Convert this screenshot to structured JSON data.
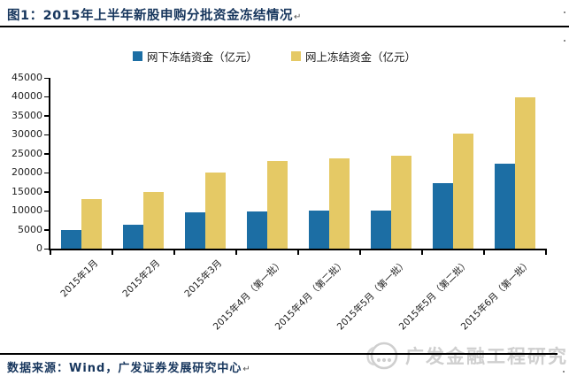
{
  "header": {
    "figure_label": "图1：2015年上半年新股申购分批资金冻结情况",
    "paragraph_mark": "↵"
  },
  "chart_data": {
    "type": "bar",
    "title": "2015年上半年新股申购分批资金冻结情况",
    "categories": [
      "2015年1月",
      "2015年2月",
      "2015年3月",
      "2015年4月（第一批）",
      "2015年4月（第二批）",
      "2015年5月（第一批）",
      "2015年5月（第二批）",
      "2015年6月（第一批）"
    ],
    "series": [
      {
        "name": "网下冻结资金（亿元）",
        "color": "#1C6EA4",
        "values": [
          5000,
          6200,
          9500,
          9900,
          10000,
          10000,
          17200,
          22400
        ]
      },
      {
        "name": "网上冻结资金（亿元）",
        "color": "#E5C965",
        "values": [
          13000,
          15000,
          20100,
          23100,
          23800,
          24500,
          30300,
          39800
        ]
      }
    ],
    "ylim": [
      0,
      45000
    ],
    "ytick_step": 5000,
    "legend_position": "top",
    "grid": false,
    "axis_color": "#000000"
  },
  "footer": {
    "source_text": "数据来源：Wind，广发证券发展研究中心",
    "paragraph_mark": "↵"
  },
  "watermark": {
    "text": "广发金融工程研究",
    "logo": "gf-research-logo",
    "color": "#CFCFCF"
  }
}
